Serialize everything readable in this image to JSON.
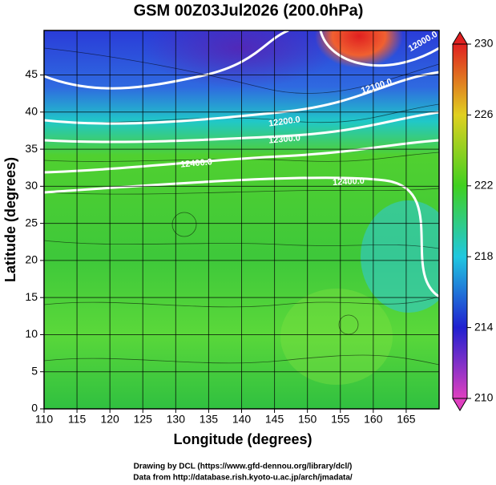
{
  "chart_data": {
    "type": "contour",
    "title": "GSM 00Z03Jul2026 (200.0hPa)",
    "xlabel": "Longitude (degrees)",
    "ylabel": "Latitude  (degrees)",
    "xlim": [
      110,
      170
    ],
    "ylim": [
      0,
      51
    ],
    "xticks": [
      110,
      115,
      120,
      125,
      130,
      135,
      140,
      145,
      150,
      155,
      160,
      165
    ],
    "yticks": [
      0,
      5,
      10,
      15,
      20,
      25,
      30,
      35,
      40,
      45
    ],
    "grid": true,
    "colorbar": {
      "lim": [
        210,
        230
      ],
      "ticks": [
        210,
        214,
        218,
        222,
        226,
        230
      ]
    },
    "contour_labels": [
      "12000.0",
      "12100.0",
      "12200.0",
      "12300.0",
      "12400.0",
      "12400.0"
    ],
    "credits": [
      "Drawing by DCL (https://www.gfd-dennou.org/library/dcl/)",
      "Data from http://database.rish.kyoto-u.ac.jp/arch/jmadata/"
    ]
  }
}
